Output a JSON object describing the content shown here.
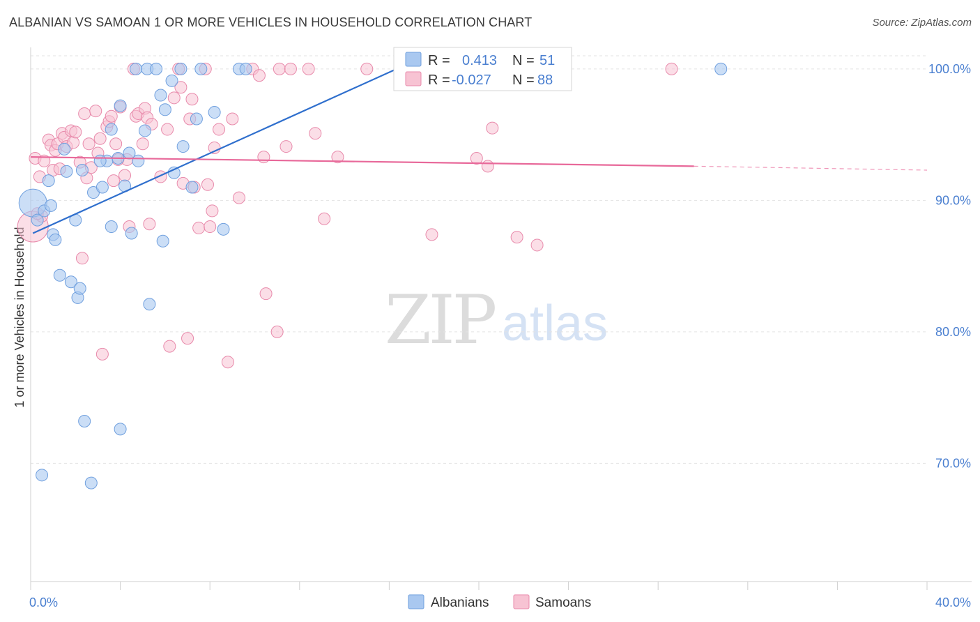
{
  "header": {
    "title": "ALBANIAN VS SAMOAN 1 OR MORE VEHICLES IN HOUSEHOLD CORRELATION CHART",
    "source": "Source: ZipAtlas.com"
  },
  "watermark": {
    "zip": "ZIP",
    "atlas": "atlas"
  },
  "colors": {
    "albanian_fill": "#a9c8f0",
    "albanian_stroke": "#6f9fde",
    "albanian_line": "#2f6fcd",
    "samoan_fill": "#f7c3d3",
    "samoan_stroke": "#e88aab",
    "samoan_line": "#e8699a",
    "tick_label": "#4a7fd0",
    "grid": "#e3e3e3"
  },
  "legend": {
    "albanian": {
      "r_label": "R =",
      "r_value": "0.413",
      "n_label": "N =",
      "n_value": "51"
    },
    "samoan": {
      "r_label": "R =",
      "r_value": "-0.027",
      "n_label": "N =",
      "n_value": "88"
    }
  },
  "chart_data": {
    "type": "scatter",
    "title": "ALBANIAN VS SAMOAN 1 OR MORE VEHICLES IN HOUSEHOLD CORRELATION CHART",
    "xlabel": "",
    "ylabel": "1 or more Vehicles in Household",
    "xlim": [
      0,
      40
    ],
    "ylim": [
      61,
      101
    ],
    "x_tick_labels": [
      "0.0%",
      "40.0%"
    ],
    "y_ticks": [
      {
        "value": 100,
        "label": "100.0%"
      },
      {
        "value": 90,
        "label": "90.0%"
      },
      {
        "value": 80,
        "label": "80.0%"
      },
      {
        "value": 70,
        "label": "70.0%"
      }
    ],
    "grid": true,
    "legend_position": "top-center",
    "series": [
      {
        "name": "Albanians",
        "r": 0.413,
        "n": 51,
        "trend": {
          "x0": 0.1,
          "y0": 87.5,
          "x1": 17.5,
          "y1": 100.9
        },
        "points": [
          [
            0.1,
            89.8,
            "big"
          ],
          [
            0.3,
            88.5
          ],
          [
            0.6,
            89.2
          ],
          [
            0.8,
            91.5
          ],
          [
            0.9,
            89.6
          ],
          [
            1.0,
            87.4
          ],
          [
            1.1,
            87.0
          ],
          [
            1.3,
            84.3
          ],
          [
            1.6,
            92.2
          ],
          [
            1.8,
            83.8
          ],
          [
            2.0,
            88.5
          ],
          [
            2.1,
            82.6
          ],
          [
            2.2,
            83.3
          ],
          [
            2.4,
            73.2
          ],
          [
            2.7,
            68.5
          ],
          [
            2.8,
            90.6
          ],
          [
            3.2,
            91.0
          ],
          [
            3.4,
            93.0
          ],
          [
            3.6,
            95.4
          ],
          [
            3.6,
            88.0
          ],
          [
            3.9,
            93.2
          ],
          [
            4.0,
            72.6
          ],
          [
            4.2,
            91.1
          ],
          [
            4.4,
            93.6
          ],
          [
            4.5,
            87.5
          ],
          [
            4.7,
            100.0
          ],
          [
            4.8,
            93.0
          ],
          [
            5.1,
            95.3
          ],
          [
            5.2,
            100.0
          ],
          [
            5.3,
            82.1
          ],
          [
            5.6,
            100.0
          ],
          [
            5.8,
            98.0
          ],
          [
            5.9,
            86.9
          ],
          [
            6.0,
            96.9
          ],
          [
            6.3,
            99.1
          ],
          [
            6.4,
            92.1
          ],
          [
            6.7,
            100.0
          ],
          [
            6.8,
            94.1
          ],
          [
            7.2,
            91.0
          ],
          [
            7.4,
            96.2
          ],
          [
            7.6,
            100.0
          ],
          [
            8.2,
            96.7
          ],
          [
            8.6,
            87.8
          ],
          [
            9.3,
            100.0
          ],
          [
            9.6,
            100.0
          ],
          [
            30.8,
            100.0
          ],
          [
            0.5,
            69.1
          ],
          [
            3.1,
            93.0
          ],
          [
            4.0,
            97.2
          ],
          [
            2.3,
            92.3
          ],
          [
            1.5,
            93.9
          ]
        ]
      },
      {
        "name": "Samoans",
        "r": -0.027,
        "n": 88,
        "trend": {
          "x0": 0.0,
          "y0": 93.3,
          "x1": 29.6,
          "y1": 92.6,
          "dash_to_x": 40.0,
          "dash_to_y": 92.3
        },
        "points": [
          [
            0.1,
            88.0,
            "big"
          ],
          [
            0.2,
            93.2
          ],
          [
            0.4,
            91.8
          ],
          [
            0.5,
            88.8
          ],
          [
            0.6,
            93.0
          ],
          [
            0.8,
            94.6
          ],
          [
            0.9,
            94.2
          ],
          [
            1.0,
            92.3
          ],
          [
            1.1,
            93.8
          ],
          [
            1.2,
            94.3
          ],
          [
            1.3,
            92.4
          ],
          [
            1.4,
            95.1
          ],
          [
            1.5,
            94.8
          ],
          [
            1.6,
            94.1
          ],
          [
            1.8,
            95.3
          ],
          [
            1.9,
            94.4
          ],
          [
            2.0,
            95.2
          ],
          [
            2.2,
            92.9
          ],
          [
            2.3,
            85.6
          ],
          [
            2.4,
            96.6
          ],
          [
            2.5,
            91.7
          ],
          [
            2.6,
            94.3
          ],
          [
            2.7,
            92.5
          ],
          [
            2.9,
            96.8
          ],
          [
            3.0,
            93.6
          ],
          [
            3.1,
            94.7
          ],
          [
            3.2,
            78.3
          ],
          [
            3.4,
            95.6
          ],
          [
            3.5,
            96.0
          ],
          [
            3.6,
            96.4
          ],
          [
            3.7,
            91.5
          ],
          [
            3.8,
            94.3
          ],
          [
            3.9,
            93.1
          ],
          [
            4.0,
            97.1
          ],
          [
            4.2,
            91.9
          ],
          [
            4.3,
            93.1
          ],
          [
            4.4,
            88.0
          ],
          [
            4.6,
            100.0
          ],
          [
            4.7,
            96.4
          ],
          [
            4.8,
            96.6
          ],
          [
            5.0,
            94.3
          ],
          [
            5.1,
            97.0
          ],
          [
            5.2,
            96.3
          ],
          [
            5.3,
            88.2
          ],
          [
            5.4,
            95.8
          ],
          [
            5.8,
            91.8
          ],
          [
            6.1,
            95.4
          ],
          [
            6.2,
            78.9
          ],
          [
            6.4,
            97.8
          ],
          [
            6.6,
            100.0
          ],
          [
            6.7,
            98.6
          ],
          [
            6.8,
            91.3
          ],
          [
            7.0,
            79.5
          ],
          [
            7.1,
            96.2
          ],
          [
            7.2,
            97.7
          ],
          [
            7.3,
            91.0
          ],
          [
            7.5,
            87.9
          ],
          [
            7.8,
            100.0
          ],
          [
            7.9,
            91.2
          ],
          [
            8.0,
            88.0
          ],
          [
            8.1,
            89.2
          ],
          [
            8.2,
            94.0
          ],
          [
            8.4,
            95.4
          ],
          [
            8.8,
            77.7
          ],
          [
            9.0,
            96.2
          ],
          [
            9.3,
            90.2
          ],
          [
            9.9,
            100.0
          ],
          [
            10.2,
            99.5
          ],
          [
            10.4,
            93.3
          ],
          [
            10.5,
            82.9
          ],
          [
            11.0,
            80.0
          ],
          [
            11.1,
            100.0
          ],
          [
            11.4,
            94.1
          ],
          [
            11.6,
            100.0
          ],
          [
            12.4,
            100.0
          ],
          [
            12.7,
            95.1
          ],
          [
            13.1,
            88.6
          ],
          [
            13.7,
            93.3
          ],
          [
            15.0,
            100.0
          ],
          [
            17.4,
            100.0
          ],
          [
            17.9,
            87.4
          ],
          [
            19.9,
            93.2
          ],
          [
            20.4,
            92.6
          ],
          [
            20.6,
            95.5
          ],
          [
            21.7,
            87.2
          ],
          [
            22.6,
            86.6
          ],
          [
            28.6,
            100.0
          ],
          [
            0.3,
            89.0
          ]
        ]
      }
    ]
  }
}
